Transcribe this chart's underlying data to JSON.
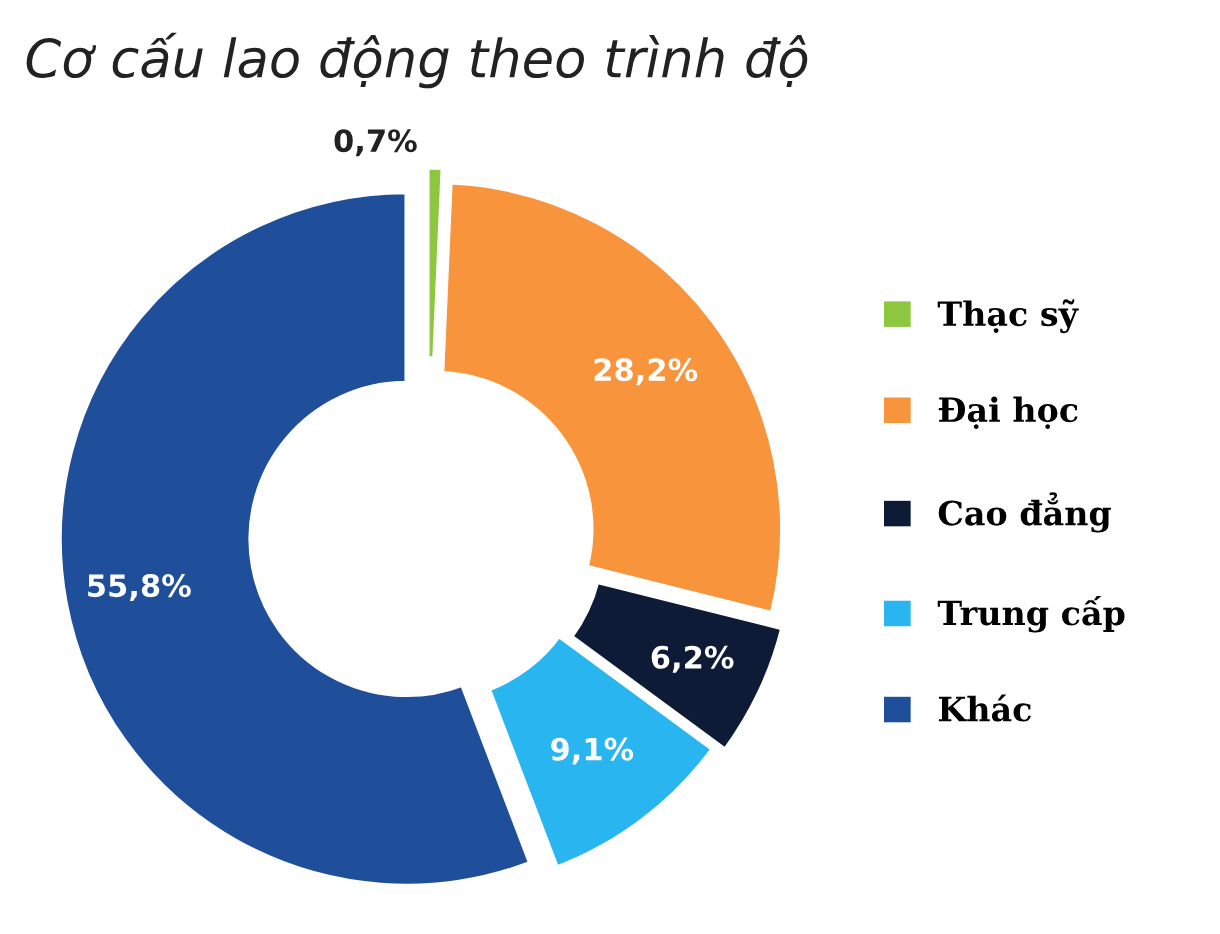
{
  "chart_data": {
    "type": "donut",
    "title": "Cơ cấu lao động theo trình độ",
    "categories": [
      "Thạc sỹ",
      "Đại học",
      "Cao đẳng",
      "Trung cấp",
      "Khác"
    ],
    "values": [
      0.7,
      28.2,
      6.2,
      9.1,
      55.8
    ],
    "colors": [
      "#8dc63f",
      "#f7943c",
      "#0d1b36",
      "#29b5f0",
      "#1f4e9b"
    ],
    "value_labels": [
      "0,7%",
      "28,2%",
      "6,2%",
      "9,1%",
      "55,8%"
    ],
    "legend": "right"
  }
}
